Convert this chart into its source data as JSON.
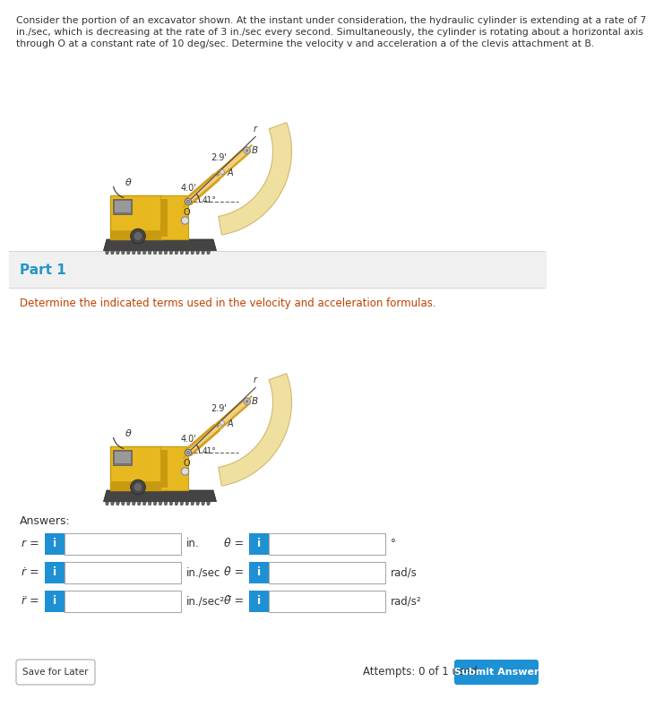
{
  "bg_color": "#f5f5f5",
  "white": "#ffffff",
  "blue_text": "#2196c8",
  "dark_text": "#333333",
  "orange_text": "#c04000",
  "header_text_lines": [
    "Consider the portion of an excavator shown. At the instant under consideration, the hydraulic cylinder is extending at a rate of 7",
    "in./sec, which is decreasing at the rate of 3 in./sec every second. Simultaneously, the cylinder is rotating about a horizontal axis",
    "through O at a constant rate of 10 deg/sec. Determine the velocity v and acceleration a of the clevis attachment at B."
  ],
  "part1_label": "Part 1",
  "instruction": "Determine the indicated terms used in the velocity and acceleration formulas.",
  "answers_label": "Answers:",
  "row_left_labels": [
    "r =",
    "ṙ =",
    "r̈ ="
  ],
  "row_left_units": [
    "in.",
    "in./sec",
    "in./sec²"
  ],
  "row_right_labels": [
    "θ =",
    "θ̇ =",
    "θ̈ ="
  ],
  "row_right_units": [
    "°",
    "rad/s",
    "rad/s²"
  ],
  "save_btn_text": "Save for Later",
  "attempts_text": "Attempts: 0 of 1 used",
  "submit_btn_text": "Submit Answer",
  "btn_color": "#1e90d4",
  "btn_text_color": "#ffffff",
  "input_border": "#aaaaaa",
  "divider_color": "#cccccc",
  "body_yellow": "#e8b820",
  "body_yellow_dark": "#c89a10",
  "arm_gold": "#d4a020",
  "arm_light": "#f0d080",
  "bucket_tan": "#e8d090",
  "gray_dark": "#555555",
  "gray_mid": "#888888",
  "gray_light": "#aaaaaa",
  "track_dark": "#444444",
  "track_mid": "#666666",
  "cylinder_metal": "#c0c0c0",
  "cylinder_dark": "#888888",
  "sand": "#f0e0a0"
}
